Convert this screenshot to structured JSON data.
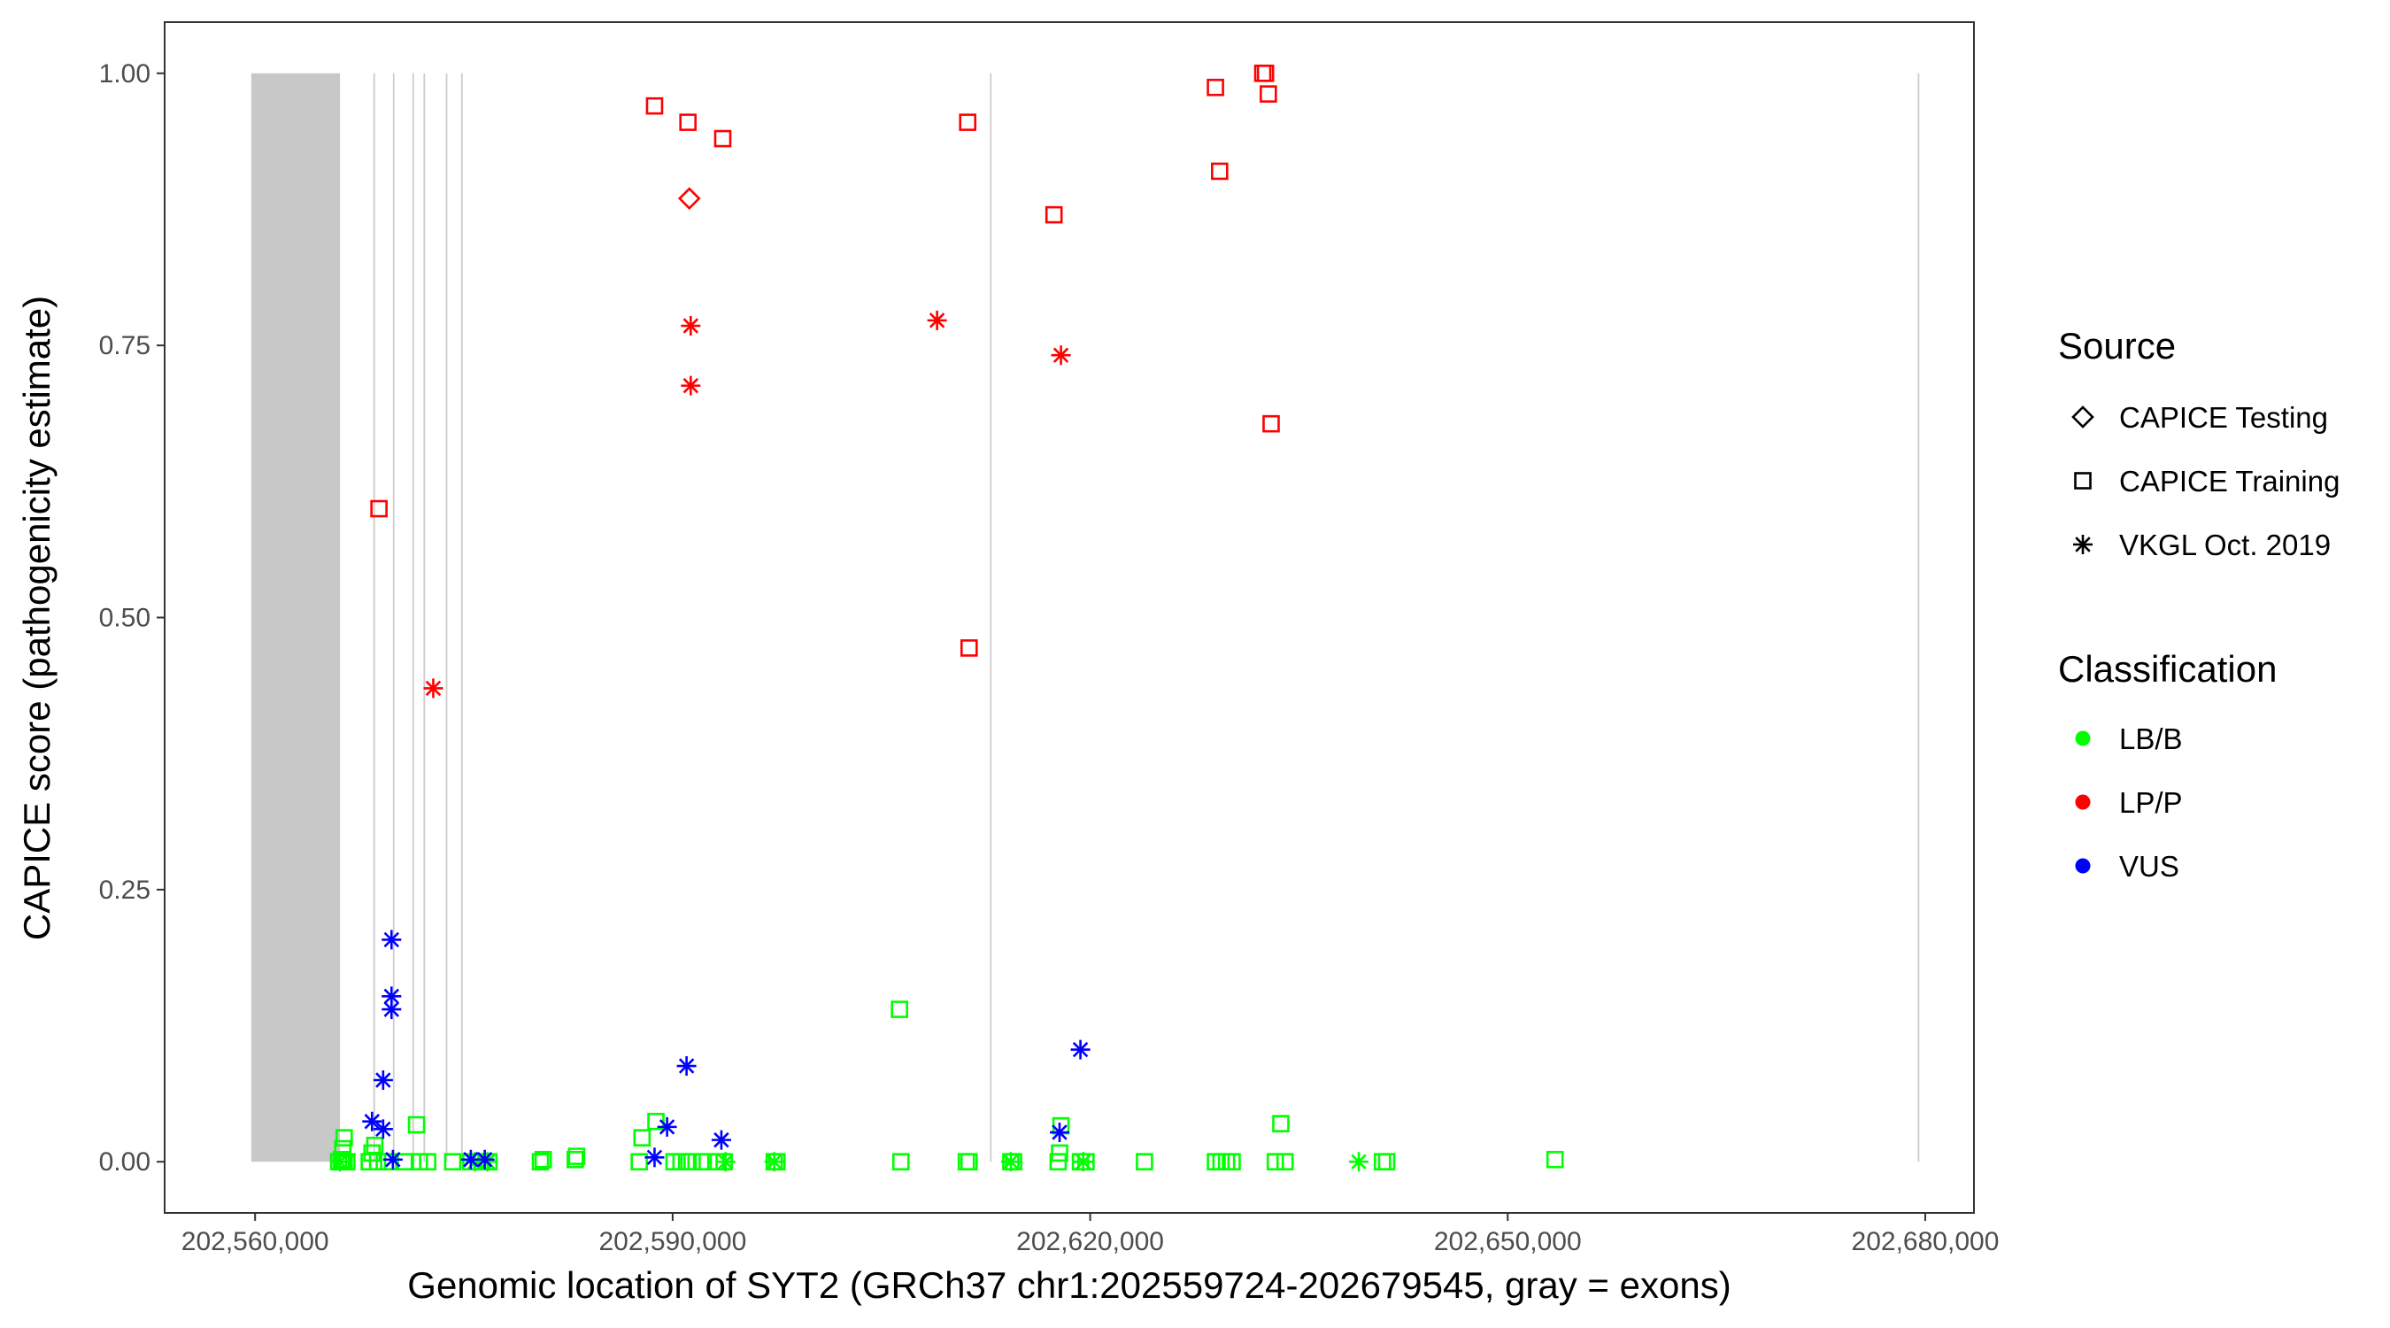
{
  "chart_data": {
    "type": "scatter",
    "title": "",
    "xlabel": "Genomic location of SYT2 (GRCh37 chr1:202559724-202679545, gray = exons)",
    "ylabel": "CAPICE score (pathogenicity estimate)",
    "xlim": [
      202553500,
      202683500
    ],
    "ylim": [
      -0.047,
      1.047
    ],
    "x_ticks": [
      202560000,
      202590000,
      202620000,
      202650000,
      202680000
    ],
    "x_tick_labels": [
      "202,560,000",
      "202,590,000",
      "202,620,000",
      "202,650,000",
      "202,680,000"
    ],
    "y_ticks": [
      0,
      0.25,
      0.5,
      0.75,
      1.0
    ],
    "y_tick_labels": [
      "0.00",
      "0.25",
      "0.50",
      "0.75",
      "1.00"
    ],
    "grid": false,
    "exons": [
      [
        202559724,
        202566100
      ],
      [
        202568500,
        202568580
      ],
      [
        202569900,
        202569980
      ],
      [
        202571300,
        202571380
      ],
      [
        202572100,
        202572180
      ],
      [
        202573700,
        202573780
      ],
      [
        202574800,
        202574880
      ],
      [
        202612800,
        202612880
      ],
      [
        202679460,
        202679545
      ]
    ],
    "legend": {
      "position": "right",
      "source_title": "Source",
      "source_items": [
        {
          "label": "CAPICE Testing",
          "shape": "diamond"
        },
        {
          "label": "CAPICE Training",
          "shape": "square"
        },
        {
          "label": "VKGL Oct. 2019",
          "shape": "asterisk"
        }
      ],
      "class_title": "Classification",
      "class_items": [
        {
          "label": "LB/B",
          "color": "#00ff00"
        },
        {
          "label": "LP/P",
          "color": "#ff0000"
        },
        {
          "label": "VUS",
          "color": "#0000ff"
        }
      ]
    },
    "colors": {
      "LB/B": "#00ff00",
      "LP/P": "#ff0000",
      "VUS": "#0000ff"
    },
    "series": [
      {
        "name": "CAPICE Training / LP/P",
        "source": "CAPICE Training",
        "classification": "LP/P",
        "points": [
          [
            202588700,
            0.97
          ],
          [
            202591100,
            0.955
          ],
          [
            202593600,
            0.94
          ],
          [
            202611200,
            0.955
          ],
          [
            202617400,
            0.87
          ],
          [
            202629000,
            0.987
          ],
          [
            202632400,
            1.0
          ],
          [
            202632600,
            1.0
          ],
          [
            202632800,
            0.981
          ],
          [
            202633000,
            0.678
          ],
          [
            202568900,
            0.6
          ],
          [
            202611300,
            0.472
          ],
          [
            202629300,
            0.91
          ]
        ]
      },
      {
        "name": "CAPICE Testing / LP/P",
        "source": "CAPICE Testing",
        "classification": "LP/P",
        "points": [
          [
            202591200,
            0.885
          ]
        ]
      },
      {
        "name": "VKGL Oct. 2019 / LP/P",
        "source": "VKGL Oct. 2019",
        "classification": "LP/P",
        "points": [
          [
            202591300,
            0.768
          ],
          [
            202591300,
            0.713
          ],
          [
            202609000,
            0.773
          ],
          [
            202617900,
            0.741
          ],
          [
            202572800,
            0.435
          ]
        ]
      },
      {
        "name": "VKGL Oct. 2019 / VUS",
        "source": "VKGL Oct. 2019",
        "classification": "VUS",
        "points": [
          [
            202569800,
            0.204
          ],
          [
            202569800,
            0.152
          ],
          [
            202569800,
            0.14
          ],
          [
            202569200,
            0.075
          ],
          [
            202568400,
            0.037
          ],
          [
            202569200,
            0.03
          ],
          [
            202569900,
            0.002
          ],
          [
            202575500,
            0.002
          ],
          [
            202576500,
            0.002
          ],
          [
            202591000,
            0.088
          ],
          [
            202589600,
            0.032
          ],
          [
            202588700,
            0.004
          ],
          [
            202593500,
            0.02
          ],
          [
            202617800,
            0.027
          ],
          [
            202619300,
            0.103
          ]
        ]
      },
      {
        "name": "CAPICE Training / LB/B",
        "source": "CAPICE Training",
        "classification": "LB/B",
        "points": [
          [
            202566000,
            0.0
          ],
          [
            202566200,
            0.002
          ],
          [
            202566300,
            0.0
          ],
          [
            202566400,
            0.0
          ],
          [
            202566600,
            0.0
          ],
          [
            202566300,
            0.012
          ],
          [
            202566400,
            0.022
          ],
          [
            202568200,
            0.0
          ],
          [
            202568400,
            0.008
          ],
          [
            202568600,
            0.015
          ],
          [
            202568800,
            0.0
          ],
          [
            202569600,
            0.0
          ],
          [
            202570800,
            0.0
          ],
          [
            202571600,
            0.034
          ],
          [
            202571800,
            0.0
          ],
          [
            202572400,
            0.0
          ],
          [
            202574200,
            0.0
          ],
          [
            202575500,
            0.0
          ],
          [
            202576300,
            0.0
          ],
          [
            202576800,
            0.0
          ],
          [
            202580500,
            0.0
          ],
          [
            202580700,
            0.002
          ],
          [
            202583000,
            0.002
          ],
          [
            202583100,
            0.005
          ],
          [
            202587600,
            0.0
          ],
          [
            202587800,
            0.022
          ],
          [
            202588800,
            0.037
          ],
          [
            202590100,
            0.0
          ],
          [
            202590600,
            0.0
          ],
          [
            202591000,
            0.0
          ],
          [
            202591400,
            0.0
          ],
          [
            202592200,
            0.0
          ],
          [
            202593100,
            0.0
          ],
          [
            202593700,
            0.0
          ],
          [
            202597300,
            0.0
          ],
          [
            202597500,
            0.0
          ],
          [
            202606300,
            0.14
          ],
          [
            202606400,
            0.0
          ],
          [
            202611100,
            0.0
          ],
          [
            202611300,
            0.0
          ],
          [
            202614300,
            0.0
          ],
          [
            202614500,
            0.0
          ],
          [
            202617700,
            0.0
          ],
          [
            202617800,
            0.008
          ],
          [
            202617900,
            0.033
          ],
          [
            202619300,
            0.0
          ],
          [
            202619700,
            0.0
          ],
          [
            202623900,
            0.0
          ],
          [
            202629000,
            0.0
          ],
          [
            202629400,
            0.0
          ],
          [
            202629800,
            0.0
          ],
          [
            202630200,
            0.0
          ],
          [
            202633300,
            0.0
          ],
          [
            202633700,
            0.035
          ],
          [
            202634000,
            0.0
          ],
          [
            202641000,
            0.0
          ],
          [
            202641300,
            0.0
          ],
          [
            202653400,
            0.002
          ]
        ]
      },
      {
        "name": "VKGL Oct. 2019 / LB/B",
        "source": "VKGL Oct. 2019",
        "classification": "LB/B",
        "points": [
          [
            202566100,
            0.0
          ],
          [
            202575800,
            0.0
          ],
          [
            202576700,
            0.0
          ],
          [
            202593800,
            0.0
          ],
          [
            202597300,
            0.0
          ],
          [
            202614300,
            0.0
          ],
          [
            202619500,
            0.0
          ],
          [
            202639300,
            0.0
          ]
        ]
      }
    ]
  }
}
